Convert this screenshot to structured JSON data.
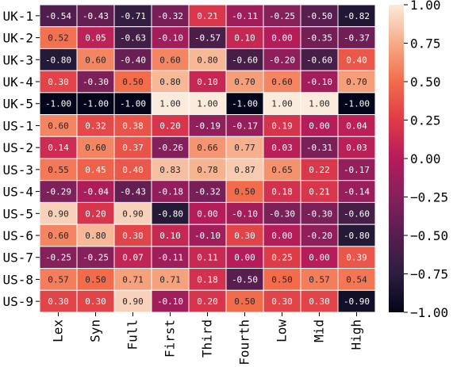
{
  "chart_data": {
    "type": "heatmap",
    "rows": [
      "UK-1",
      "UK-2",
      "UK-3",
      "UK-4",
      "UK-5",
      "US-1",
      "US-2",
      "US-3",
      "US-4",
      "US-5",
      "US-6",
      "US-7",
      "US-8",
      "US-9"
    ],
    "columns": [
      "Lex",
      "Syn",
      "Full",
      "First",
      "Third",
      "Fourth",
      "Low",
      "Mid",
      "High"
    ],
    "values": [
      [
        -0.54,
        -0.43,
        -0.71,
        -0.32,
        0.21,
        -0.11,
        -0.25,
        -0.5,
        -0.82
      ],
      [
        0.52,
        0.05,
        -0.63,
        -0.1,
        -0.57,
        0.1,
        0.0,
        -0.35,
        -0.37
      ],
      [
        -0.8,
        0.6,
        -0.4,
        0.6,
        0.8,
        -0.6,
        -0.2,
        -0.6,
        0.4
      ],
      [
        0.3,
        -0.3,
        0.5,
        0.8,
        0.1,
        0.7,
        0.6,
        -0.1,
        0.7
      ],
      [
        -1.0,
        -1.0,
        -1.0,
        1.0,
        1.0,
        -1.0,
        1.0,
        1.0,
        -1.0
      ],
      [
        0.6,
        0.32,
        0.38,
        0.2,
        -0.19,
        -0.17,
        0.19,
        0.0,
        0.04
      ],
      [
        0.14,
        0.6,
        0.37,
        -0.26,
        0.66,
        0.77,
        0.03,
        -0.31,
        0.03
      ],
      [
        0.55,
        0.45,
        0.4,
        0.83,
        0.78,
        0.87,
        0.65,
        0.22,
        -0.17
      ],
      [
        -0.29,
        -0.04,
        -0.43,
        -0.18,
        -0.32,
        0.5,
        0.18,
        0.21,
        -0.14
      ],
      [
        0.9,
        0.2,
        0.9,
        -0.8,
        0.0,
        -0.1,
        -0.3,
        -0.3,
        -0.6
      ],
      [
        0.6,
        0.8,
        0.3,
        0.1,
        -0.1,
        0.3,
        0.0,
        -0.2,
        -0.8
      ],
      [
        -0.25,
        -0.25,
        0.07,
        -0.11,
        0.11,
        0.0,
        0.25,
        0.0,
        0.39
      ],
      [
        0.57,
        0.5,
        0.71,
        0.71,
        0.18,
        -0.5,
        0.5,
        0.57,
        0.54
      ],
      [
        0.3,
        0.3,
        0.9,
        -0.1,
        0.2,
        0.5,
        0.3,
        0.3,
        -0.9
      ]
    ],
    "vmin": -1.0,
    "vmax": 1.0,
    "colormap": "rocket",
    "annotate": true,
    "value_format": "2 decimals",
    "colorbar_ticks": [
      1.0,
      0.75,
      0.5,
      0.25,
      0.0,
      -0.25,
      -0.5,
      -0.75,
      -1.0
    ],
    "colorbar_tick_labels": [
      "1.00",
      "0.75",
      "0.50",
      "0.25",
      "0.00",
      "−0.25",
      "−0.50",
      "−0.75",
      "−1.00"
    ],
    "title": "",
    "xlabel": "",
    "ylabel": ""
  }
}
